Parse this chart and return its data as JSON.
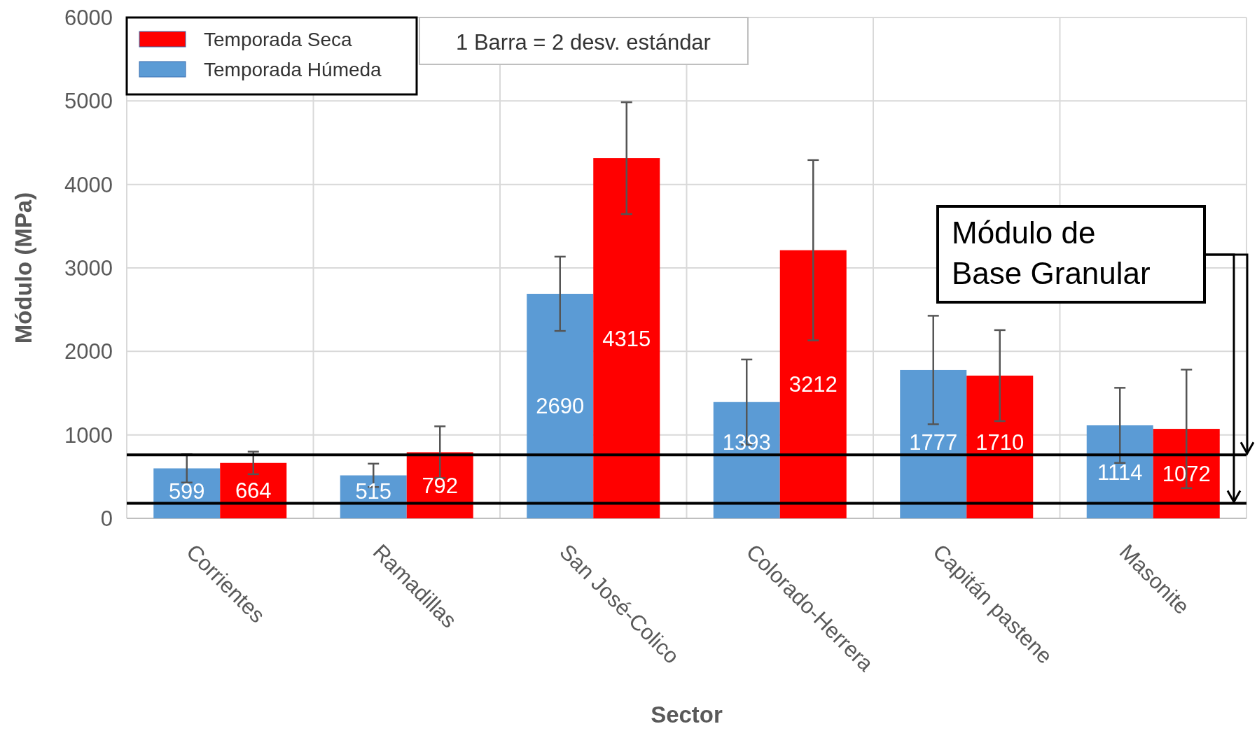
{
  "chart_data": {
    "type": "bar",
    "xlabel": "Sector",
    "ylabel": "Módulo (MPa)",
    "categories": [
      "Corrientes",
      "Ramadillas",
      "San José-Colico",
      "Colorado-Herrera",
      "Capitán pastene",
      "Masonite"
    ],
    "series": [
      {
        "name": "Temporada Húmeda",
        "color": "#5b9bd5",
        "values": [
          599,
          515,
          2690,
          1393,
          1777,
          1114
        ],
        "errors": [
          170,
          140,
          445,
          510,
          650,
          450
        ]
      },
      {
        "name": "Temporada Seca",
        "color": "#ff0000",
        "values": [
          664,
          792,
          4315,
          3212,
          1710,
          1072
        ],
        "errors": [
          135,
          310,
          670,
          1080,
          545,
          710
        ]
      }
    ],
    "ylim": [
      0,
      6000
    ],
    "yticks": [
      0,
      1000,
      2000,
      3000,
      4000,
      5000,
      6000
    ],
    "grid": true,
    "legend": "top left",
    "data_labels": true,
    "ref_lines": [
      {
        "axis": "y",
        "value": 760,
        "color": "#000000"
      },
      {
        "axis": "y",
        "value": 180,
        "color": "#000000"
      }
    ],
    "annotations": [
      "1 Barra = 2 desv. estándar",
      "Módulo de\nBase Granular"
    ]
  }
}
